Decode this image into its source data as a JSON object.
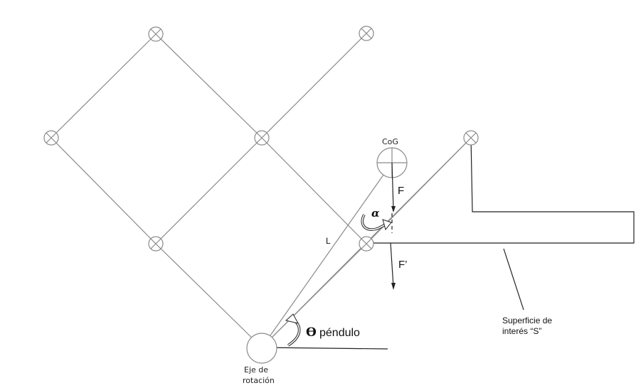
{
  "labels": {
    "cog": "CoG",
    "force_f": "F",
    "force_f_prime": "F’",
    "alpha": "α",
    "length": "L",
    "theta_symbol": "ϴ",
    "theta_word": "péndulo",
    "axis_line1": "Eje de",
    "axis_line2": "rotación",
    "surface_line1": "Superficie de",
    "surface_line2": "interés “S”"
  },
  "colors": {
    "structure": "#8a8a8a",
    "vectors": "#222222",
    "text": "#111111"
  }
}
